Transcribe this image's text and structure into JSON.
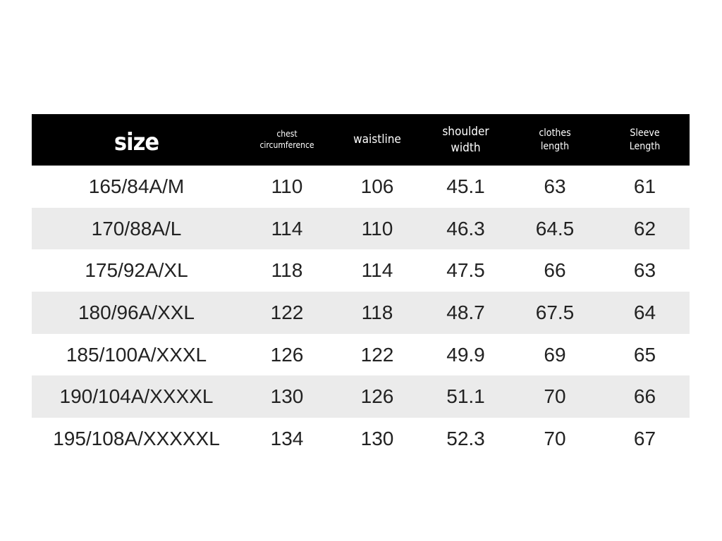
{
  "headers": [
    "size",
    "chest circumference",
    "waistline",
    "shoulder width",
    "clothes length",
    "Sleeve Length"
  ],
  "rows": [
    [
      "165/84A/M",
      "110",
      "106",
      "45.1",
      "63",
      "61"
    ],
    [
      "170/88A/L",
      "114",
      "110",
      "46.3",
      "64.5",
      "62"
    ],
    [
      "175/92A/XL",
      "118",
      "114",
      "47.5",
      "66",
      "63"
    ],
    [
      "180/96A/XXL",
      "122",
      "118",
      "48.7",
      "67.5",
      "64"
    ],
    [
      "185/100A/XXXL",
      "126",
      "122",
      "49.9",
      "69",
      "65"
    ],
    [
      "190/104A/XXXXL",
      "130",
      "126",
      "51.1",
      "70",
      "66"
    ],
    [
      "195/108A/XXXXXL",
      "134",
      "130",
      "52.3",
      "70",
      "67"
    ]
  ],
  "colors": {
    "header_bg": "#000000",
    "header_text": "#ffffff",
    "alt_row_bg": "#ebebeb",
    "text": "#222222"
  }
}
